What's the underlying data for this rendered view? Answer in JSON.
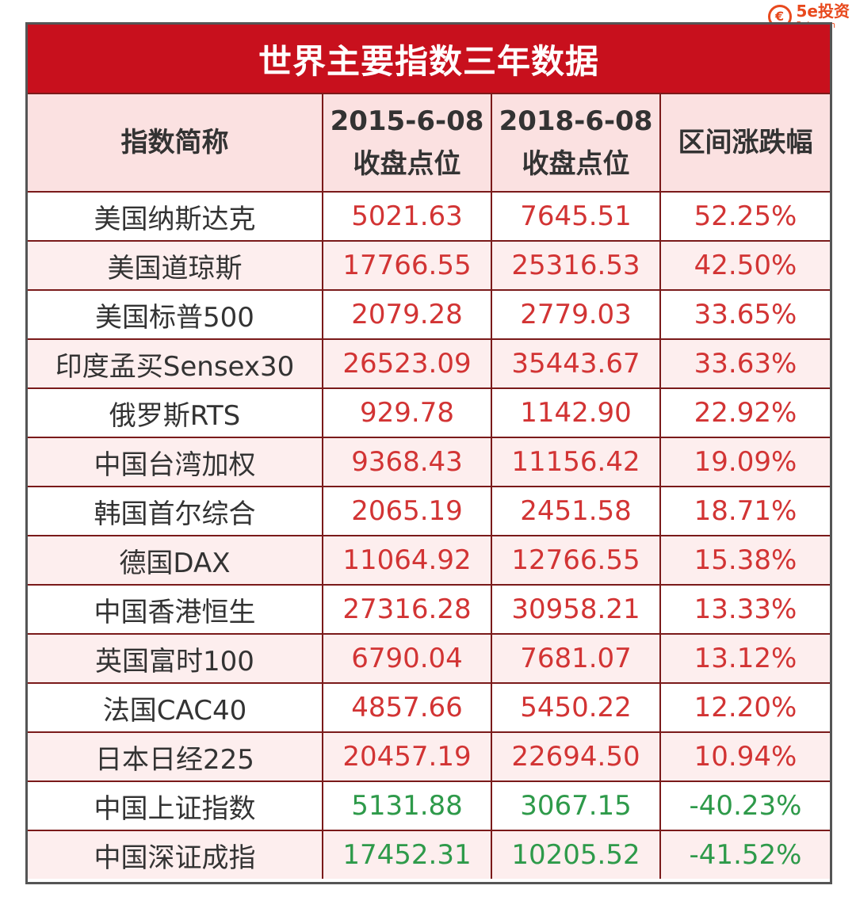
{
  "logo": {
    "mark": "€",
    "brand": "5e投资",
    "domain": "5eiz.com"
  },
  "table": {
    "title": "世界主要指数三年数据",
    "headers": {
      "name": "指数简称",
      "col1_date": "2015-6-08",
      "col1_sub": "收盘点位",
      "col2_date": "2018-6-08",
      "col2_sub": "收盘点位",
      "change": "区间涨跌幅"
    },
    "rows": [
      {
        "name": "美国纳斯达克",
        "v2015": "5021.63",
        "v2018": "7645.51",
        "change": "52.25%",
        "trend": "up"
      },
      {
        "name": "美国道琼斯",
        "v2015": "17766.55",
        "v2018": "25316.53",
        "change": "42.50%",
        "trend": "up"
      },
      {
        "name": "美国标普500",
        "v2015": "2079.28",
        "v2018": "2779.03",
        "change": "33.65%",
        "trend": "up"
      },
      {
        "name": "印度孟买Sensex30",
        "v2015": "26523.09",
        "v2018": "35443.67",
        "change": "33.63%",
        "trend": "up"
      },
      {
        "name": "俄罗斯RTS",
        "v2015": "929.78",
        "v2018": "1142.90",
        "change": "22.92%",
        "trend": "up"
      },
      {
        "name": "中国台湾加权",
        "v2015": "9368.43",
        "v2018": "11156.42",
        "change": "19.09%",
        "trend": "up"
      },
      {
        "name": "韩国首尔综合",
        "v2015": "2065.19",
        "v2018": "2451.58",
        "change": "18.71%",
        "trend": "up"
      },
      {
        "name": "德国DAX",
        "v2015": "11064.92",
        "v2018": "12766.55",
        "change": "15.38%",
        "trend": "up"
      },
      {
        "name": "中国香港恒生",
        "v2015": "27316.28",
        "v2018": "30958.21",
        "change": "13.33%",
        "trend": "up"
      },
      {
        "name": "英国富时100",
        "v2015": "6790.04",
        "v2018": "7681.07",
        "change": "13.12%",
        "trend": "up"
      },
      {
        "name": "法国CAC40",
        "v2015": "4857.66",
        "v2018": "5450.22",
        "change": "12.20%",
        "trend": "up"
      },
      {
        "name": "日本日经225",
        "v2015": "20457.19",
        "v2018": "22694.50",
        "change": "10.94%",
        "trend": "up"
      },
      {
        "name": "中国上证指数",
        "v2015": "5131.88",
        "v2018": "3067.15",
        "change": "-40.23%",
        "trend": "down"
      },
      {
        "name": "中国深证成指",
        "v2015": "17452.31",
        "v2018": "10205.52",
        "change": "-41.52%",
        "trend": "down"
      }
    ]
  },
  "colors": {
    "title_bg": "#c8101d",
    "up_text": "#d23434",
    "down_text": "#2e9a4a",
    "header_bg": "#fbe1e1",
    "logo": "#e8491d"
  }
}
